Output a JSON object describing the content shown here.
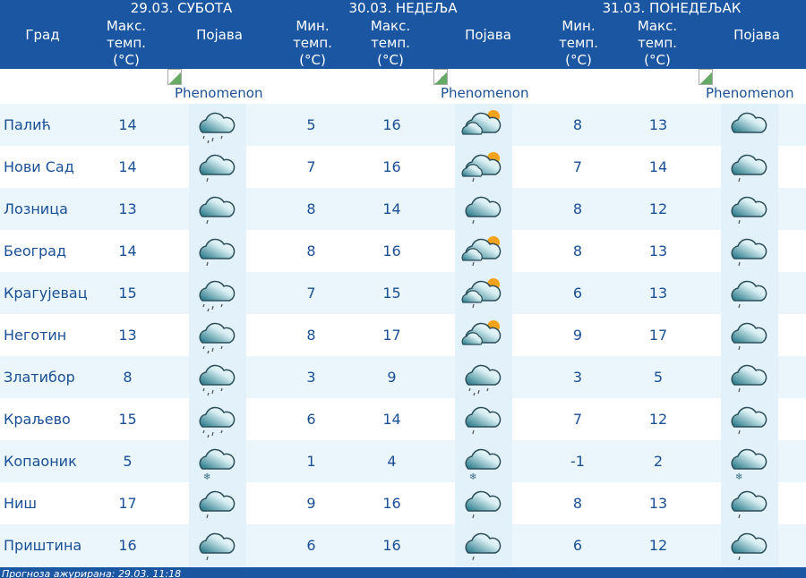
{
  "header": {
    "city_label": "Град",
    "days": [
      {
        "title": "29.03. СУБОТА",
        "cols": [
          "Макс. темп. (°C)",
          "Појава"
        ]
      },
      {
        "title": "30.03. НЕДЕЉА",
        "cols": [
          "Мин. темп. (°C)",
          "Макс. темп. (°C)",
          "Појава"
        ]
      },
      {
        "title": "31.03. ПОНЕДЕЉАК",
        "cols": [
          "Мин. темп. (°C)",
          "Макс. темп. (°C)",
          "Појава"
        ]
      }
    ]
  },
  "phenomenon_alt": "Phenomenon",
  "rows": [
    {
      "city": "Палић",
      "d1max": "14",
      "d1": "rain",
      "d2min": "5",
      "d2max": "16",
      "d2": "sun-cloud",
      "d3min": "8",
      "d3max": "13",
      "d3": "cloud"
    },
    {
      "city": "Нови Сад",
      "d1max": "14",
      "d1": "drizzle",
      "d2min": "7",
      "d2max": "16",
      "d2": "sun-cloud-drizzle",
      "d3min": "7",
      "d3max": "14",
      "d3": "drizzle"
    },
    {
      "city": "Лозница",
      "d1max": "13",
      "d1": "drizzle",
      "d2min": "8",
      "d2max": "14",
      "d2": "drizzle",
      "d3min": "8",
      "d3max": "12",
      "d3": "drizzle"
    },
    {
      "city": "Београд",
      "d1max": "14",
      "d1": "drizzle",
      "d2min": "8",
      "d2max": "16",
      "d2": "sun-cloud-drizzle",
      "d3min": "8",
      "d3max": "13",
      "d3": "drizzle"
    },
    {
      "city": "Крагујевац",
      "d1max": "15",
      "d1": "rain",
      "d2min": "7",
      "d2max": "15",
      "d2": "sun-cloud-drizzle",
      "d3min": "6",
      "d3max": "13",
      "d3": "drizzle"
    },
    {
      "city": "Неготин",
      "d1max": "13",
      "d1": "rain",
      "d2min": "8",
      "d2max": "17",
      "d2": "sun-cloud",
      "d3min": "9",
      "d3max": "17",
      "d3": "drizzle"
    },
    {
      "city": "Златибор",
      "d1max": "8",
      "d1": "rain",
      "d2min": "3",
      "d2max": "9",
      "d2": "rain",
      "d3min": "3",
      "d3max": "5",
      "d3": "drizzle"
    },
    {
      "city": "Краљево",
      "d1max": "15",
      "d1": "rain",
      "d2min": "6",
      "d2max": "14",
      "d2": "drizzle",
      "d3min": "7",
      "d3max": "12",
      "d3": "drizzle"
    },
    {
      "city": "Копаоник",
      "d1max": "5",
      "d1": "snow",
      "d2min": "1",
      "d2max": "4",
      "d2": "snow",
      "d3min": "-1",
      "d3max": "2",
      "d3": "snow"
    },
    {
      "city": "Ниш",
      "d1max": "17",
      "d1": "drizzle",
      "d2min": "9",
      "d2max": "16",
      "d2": "drizzle",
      "d3min": "8",
      "d3max": "13",
      "d3": "drizzle"
    },
    {
      "city": "Приштина",
      "d1max": "16",
      "d1": "drizzle",
      "d2min": "6",
      "d2max": "16",
      "d2": "drizzle",
      "d3min": "6",
      "d3max": "12",
      "d3": "drizzle"
    }
  ],
  "footer": "Прогноза ажурирана:  29.03. 11:18",
  "colors": {
    "header": "#1b56a3",
    "row_alt": "#eaf6fb",
    "text": "#1a4f96"
  }
}
